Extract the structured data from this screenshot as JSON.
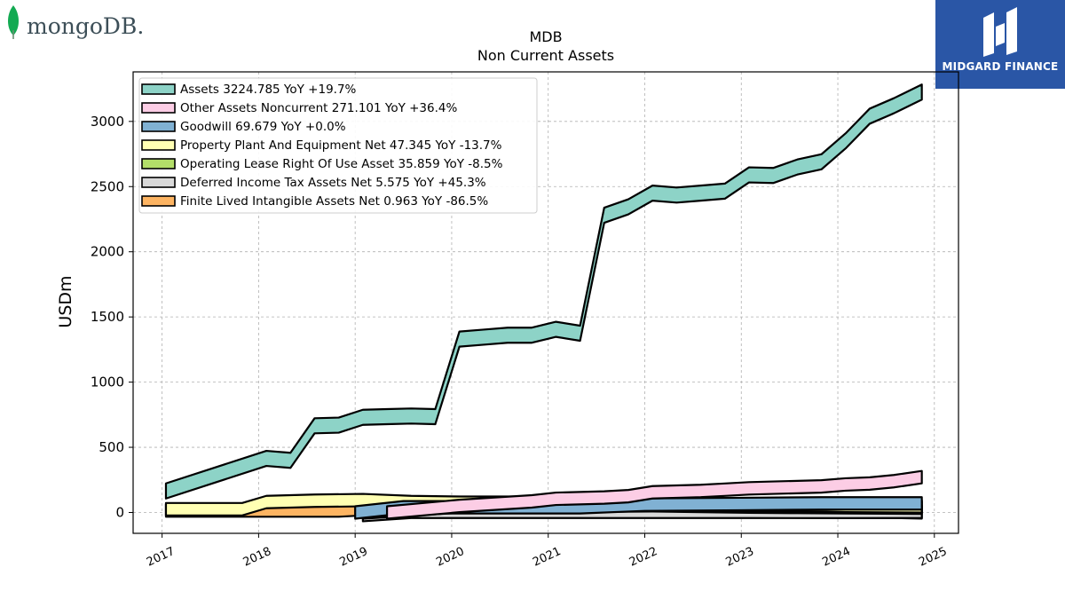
{
  "logos": {
    "left_text": "mongoDB.",
    "right_text": "MIDGARD FINANCE"
  },
  "chart_data": {
    "type": "area",
    "title": "MDB",
    "subtitle": "Non Current  Assets",
    "xlabel": "",
    "ylabel": "USDm",
    "xlim": [
      2016.7,
      2025.25
    ],
    "ylim": [
      -160,
      3380
    ],
    "yticks": [
      0,
      500,
      1000,
      1500,
      2000,
      2500,
      3000
    ],
    "xticks": [
      2017,
      2018,
      2019,
      2020,
      2021,
      2022,
      2023,
      2024,
      2025
    ],
    "grid": true,
    "legend_position": "top-left",
    "series": [
      {
        "name": "Assets",
        "legend": "Assets  3224.785 YoY +19.7%",
        "color": "#8dd3c7",
        "x": [
          2017.04,
          2018.08,
          2018.33,
          2018.58,
          2018.83,
          2019.08,
          2019.33,
          2019.58,
          2019.83,
          2020.08,
          2020.33,
          2020.58,
          2020.83,
          2021.08,
          2021.33,
          2021.58,
          2021.83,
          2022.08,
          2022.33,
          2022.58,
          2022.83,
          2023.08,
          2023.33,
          2023.58,
          2023.83,
          2024.08,
          2024.33,
          2024.58,
          2024.87
        ],
        "y": [
          165,
          415,
          400,
          665,
          670,
          730,
          735,
          740,
          735,
          1330,
          1345,
          1360,
          1360,
          1405,
          1375,
          2280,
          2345,
          2450,
          2435,
          2450,
          2465,
          2590,
          2585,
          2650,
          2690,
          2850,
          3040,
          3120,
          3225
        ]
      },
      {
        "name": "Other Assets Noncurrent",
        "legend": "Other Assets Noncurrent  271.101 YoY +36.4%",
        "color": "#fccde5",
        "x": [
          2019.33,
          2020.08,
          2020.83,
          2021.08,
          2021.58,
          2021.83,
          2022.08,
          2022.33,
          2022.58,
          2022.83,
          2023.08,
          2023.33,
          2023.58,
          2023.83,
          2024.08,
          2024.33,
          2024.58,
          2024.87
        ],
        "y": [
          0,
          50,
          85,
          105,
          115,
          125,
          155,
          160,
          165,
          175,
          185,
          190,
          195,
          200,
          215,
          222,
          240,
          271
        ]
      },
      {
        "name": "Goodwill",
        "legend": "Goodwill  69.679 YoY +0.0%",
        "color": "#80b1d3",
        "x": [
          2019.0,
          2019.5,
          2020.0,
          2021.0,
          2021.33,
          2022.0,
          2023.0,
          2023.83,
          2024.87
        ],
        "y": [
          0,
          40,
          40,
          40,
          40,
          60,
          65,
          70,
          70
        ]
      },
      {
        "name": "Property Plant And Equipment Net",
        "legend": "Property Plant And Equipment Net  47.345 YoY -13.7%",
        "color": "#ffffb3",
        "x": [
          2017.04,
          2017.83,
          2018.08,
          2018.58,
          2019.08,
          2019.58,
          2020.08,
          2020.83,
          2021.08,
          2022.08,
          2023.08,
          2023.83,
          2024.08,
          2024.87
        ],
        "y": [
          25,
          25,
          80,
          90,
          95,
          80,
          75,
          75,
          70,
          60,
          55,
          55,
          50,
          47
        ]
      },
      {
        "name": "Operating Lease Right Of Use Asset",
        "legend": "Operating Lease Right Of Use Asset  35.859 YoY -8.5%",
        "color": "#b3de69",
        "x": [
          2019.08,
          2020.08,
          2021.08,
          2022.08,
          2022.58,
          2023.08,
          2023.58,
          2024.08,
          2024.87
        ],
        "y": [
          0,
          45,
          50,
          55,
          50,
          45,
          42,
          40,
          36
        ]
      },
      {
        "name": "Deferred Income Tax Assets Net",
        "legend": "Deferred Income Tax Assets Net  5.575 YoY +45.3%",
        "color": "#d9d9d9",
        "x": [
          2019.08,
          2019.58,
          2020.08,
          2021.08,
          2022.08,
          2023.08,
          2024.08,
          2024.87
        ],
        "y": [
          -20,
          5,
          5,
          5,
          5,
          5,
          4,
          5.6
        ]
      },
      {
        "name": "Finite Lived Intangible Assets Net",
        "legend": "Finite Lived Intangible Assets Net  0.963 YoY -86.5%",
        "color": "#fdb462",
        "x": [
          2017.04,
          2018.08,
          2018.83,
          2019.08,
          2019.33,
          2019.58,
          2020.08,
          2020.58,
          2021.08,
          2021.58,
          2022.08,
          2022.58,
          2023.08,
          2023.58,
          2024.08,
          2024.58,
          2024.87
        ],
        "y": [
          15,
          15,
          15,
          25,
          30,
          60,
          55,
          50,
          45,
          40,
          35,
          30,
          25,
          15,
          10,
          5,
          1
        ]
      }
    ]
  }
}
